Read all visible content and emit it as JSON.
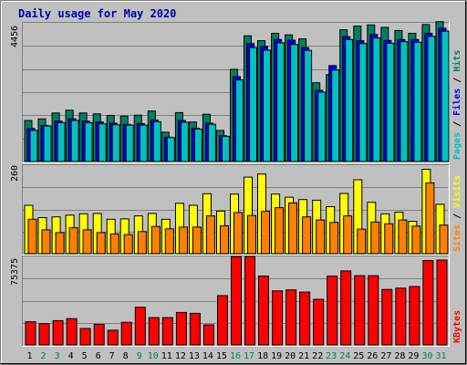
{
  "chart_data": {
    "type": "bar",
    "title": "Daily usage for May 2020",
    "categories": [
      "1",
      "2",
      "3",
      "4",
      "5",
      "6",
      "7",
      "8",
      "9",
      "10",
      "11",
      "12",
      "13",
      "14",
      "15",
      "16",
      "17",
      "18",
      "19",
      "20",
      "21",
      "22",
      "23",
      "24",
      "25",
      "26",
      "27",
      "28",
      "29",
      "30",
      "31"
    ],
    "weekend_days": [
      "2",
      "3",
      "9",
      "10",
      "16",
      "17",
      "23",
      "24",
      "30",
      "31"
    ],
    "weekday_label_color": "#000000",
    "weekend_label_color": "#00805c",
    "panels": [
      {
        "y_max_label": "4456",
        "y_max": 4456,
        "right_label": [
          {
            "text": "Pages",
            "color": "#00c0c0"
          },
          {
            "text": " / ",
            "color": "#000000"
          },
          {
            "text": "Files",
            "color": "#0000ff"
          },
          {
            "text": " / ",
            "color": "#000000"
          },
          {
            "text": "Hits",
            "color": "#008060"
          }
        ],
        "series": [
          {
            "name": "Hits",
            "color": "#008060",
            "values": [
              1320,
              1370,
              1560,
              1650,
              1560,
              1530,
              1480,
              1460,
              1490,
              1620,
              940,
              1570,
              1270,
              1520,
              1000,
              2960,
              4040,
              3880,
              4120,
              4070,
              3940,
              2530,
              2790,
              4230,
              4350,
              4390,
              4310,
              4210,
              4120,
              4400,
              4490
            ]
          },
          {
            "name": "Files",
            "color": "#0000ff",
            "values": [
              1060,
              1160,
              1300,
              1370,
              1300,
              1270,
              1230,
              1190,
              1220,
              1330,
              780,
              1320,
              1070,
              1230,
              830,
              2730,
              3790,
              3700,
              3920,
              3900,
              3660,
              2290,
              3080,
              4010,
              3880,
              4080,
              3890,
              3920,
              3920,
              4120,
              4280
            ]
          },
          {
            "name": "Pages",
            "color": "#00c0c0",
            "values": [
              1000,
              1140,
              1250,
              1320,
              1250,
              1210,
              1180,
              1170,
              1170,
              1280,
              770,
              1260,
              1040,
              1200,
              810,
              2620,
              3660,
              3580,
              3810,
              3760,
              3570,
              2230,
              2940,
              3920,
              3790,
              3970,
              3800,
              3850,
              3830,
              4020,
              4190
            ]
          }
        ]
      },
      {
        "y_max_label": "260",
        "y_max": 260,
        "right_label": [
          {
            "text": "Sites",
            "color": "#ff8000"
          },
          {
            "text": " / ",
            "color": "#000000"
          },
          {
            "text": "Visits",
            "color": "#ffff00"
          }
        ],
        "series": [
          {
            "name": "Visits",
            "color": "#ffff00",
            "values": [
              142,
              106,
              108,
              113,
              117,
              118,
              101,
              102,
              111,
              118,
              101,
              148,
              142,
              176,
              125,
              175,
              225,
              234,
              175,
              166,
              159,
              157,
              138,
              177,
              217,
              151,
              117,
              122,
              95,
              248,
              145
            ]
          },
          {
            "name": "Sites",
            "color": "#ff8000",
            "values": [
              101,
              70,
              62,
              76,
              70,
              62,
              58,
              56,
              65,
              80,
              73,
              78,
              78,
              111,
              82,
              121,
              112,
              124,
              135,
              149,
              108,
              99,
              92,
              111,
              72,
              93,
              88,
              99,
              81,
              208,
              84
            ]
          }
        ]
      },
      {
        "y_max_label": "75375",
        "y_max": 75375,
        "right_label": [
          {
            "text": "KBytes",
            "color": "#ff0000"
          }
        ],
        "series": [
          {
            "name": "KBytes",
            "color": "#ff0000",
            "values": [
              19750,
              18120,
              20660,
              22380,
              13960,
              17480,
              12520,
              19300,
              32100,
              23200,
              23250,
              27670,
              26900,
              17070,
              42000,
              75200,
              75200,
              58680,
              45970,
              46870,
              44990,
              38820,
              58600,
              63020,
              59010,
              58980,
              47260,
              48310,
              49770,
              71850,
              72240
            ]
          }
        ]
      }
    ]
  }
}
